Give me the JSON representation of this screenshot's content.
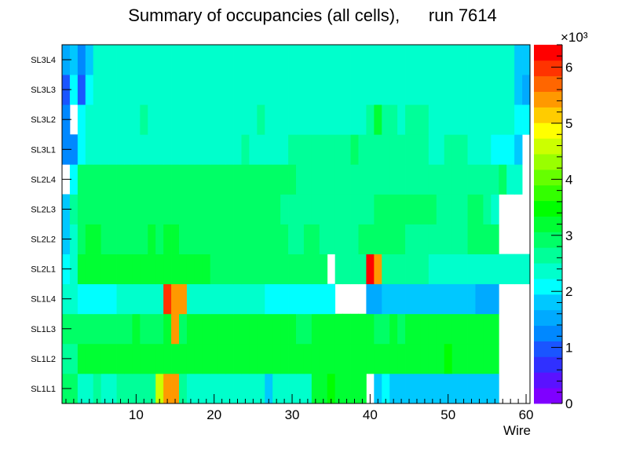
{
  "chart_data": {
    "type": "heatmap",
    "title": "Summary of occupancies (all cells),      run 7614",
    "xlabel": "Wire",
    "ylabel": "",
    "xlim": [
      0.5,
      60.5
    ],
    "x_ticks": [
      10,
      20,
      30,
      40,
      50,
      60
    ],
    "y_labels": [
      "SL1L1",
      "SL1L2",
      "SL1L3",
      "SL1L4",
      "SL2L1",
      "SL2L2",
      "SL2L3",
      "SL2L4",
      "SL3L1",
      "SL3L2",
      "SL3L3",
      "SL3L4"
    ],
    "z_range": [
      0,
      6400
    ],
    "z_multiplier_label": "×10³",
    "colorbar_ticks": [
      0,
      1,
      2,
      3,
      4,
      5,
      6
    ],
    "palette": [
      "#7f00ff",
      "#5a12ff",
      "#3030ff",
      "#1a55ff",
      "#0088ff",
      "#00aaff",
      "#00c8ff",
      "#00ffff",
      "#00ffcc",
      "#00ff99",
      "#00ff66",
      "#00ff33",
      "#00ff00",
      "#33ff00",
      "#66ff00",
      "#99ff00",
      "#ccff00",
      "#ffff00",
      "#ffcc00",
      "#ff9900",
      "#ff6600",
      "#ff3300",
      "#ff0000"
    ],
    "rows": {
      "SL1L1": [
        2900,
        2900,
        2500,
        2500,
        2700,
        2300,
        2500,
        2700,
        2700,
        2700,
        2700,
        2700,
        4700,
        5500,
        5500,
        2700,
        2500,
        2500,
        2500,
        2500,
        2500,
        2500,
        2300,
        2300,
        2300,
        2300,
        1800,
        2300,
        2300,
        2300,
        2300,
        2300,
        3300,
        3300,
        3500,
        3300,
        3300,
        3300,
        3300,
        0,
        1700,
        2100,
        1700,
        1700,
        1700,
        1700,
        1700,
        1700,
        1700,
        1700,
        1700,
        1700,
        1700,
        1700,
        1700,
        1700,
        0,
        0,
        0,
        0
      ],
      "SL1L2": [
        2700,
        2700,
        3100,
        3100,
        3300,
        3100,
        3100,
        3300,
        3300,
        3300,
        3100,
        3100,
        3100,
        3300,
        3300,
        3100,
        3100,
        3100,
        3300,
        3300,
        3300,
        3300,
        3300,
        3300,
        3300,
        3300,
        3300,
        3300,
        3100,
        3100,
        3100,
        3100,
        3100,
        3100,
        3300,
        3300,
        3300,
        3300,
        3300,
        3300,
        3300,
        3100,
        3100,
        3100,
        3100,
        3100,
        3300,
        3300,
        3100,
        3500,
        3100,
        3100,
        3100,
        3100,
        3100,
        3100,
        0,
        0,
        0,
        0
      ],
      "SL1L3": [
        2800,
        2800,
        3000,
        3000,
        3000,
        3000,
        3000,
        3000,
        3000,
        3200,
        3000,
        3000,
        3000,
        3300,
        5300,
        3000,
        3200,
        3300,
        3300,
        3300,
        3300,
        3300,
        3300,
        3300,
        3300,
        3300,
        3300,
        3200,
        3200,
        3200,
        3000,
        3000,
        3300,
        3300,
        3300,
        3300,
        3300,
        3300,
        3300,
        3300,
        3000,
        3000,
        3100,
        3000,
        3100,
        3100,
        3100,
        3100,
        3100,
        3100,
        3100,
        3100,
        3100,
        3100,
        3100,
        3100,
        0,
        0,
        0,
        0
      ],
      "SL1L4": [
        2400,
        2400,
        2100,
        2100,
        2100,
        2100,
        2100,
        2300,
        2300,
        2300,
        2300,
        2500,
        2500,
        6100,
        5500,
        5500,
        2500,
        2300,
        2300,
        2300,
        2300,
        2300,
        2300,
        2300,
        2300,
        2500,
        2100,
        2100,
        2100,
        2100,
        2100,
        2100,
        2100,
        2100,
        2100,
        0,
        0,
        0,
        0,
        1600,
        1600,
        1900,
        1700,
        1700,
        1700,
        1700,
        1700,
        1700,
        1700,
        1700,
        1700,
        1700,
        1700,
        1400,
        1600,
        1400,
        0,
        0,
        0,
        0
      ],
      "SL2L1": [
        2100,
        2500,
        3100,
        3100,
        3300,
        3300,
        3300,
        3100,
        3100,
        3100,
        3300,
        3300,
        3300,
        3300,
        3300,
        3100,
        3300,
        3300,
        3100,
        3000,
        3000,
        3000,
        3000,
        3000,
        3000,
        3000,
        3000,
        3000,
        3000,
        3000,
        3000,
        3000,
        3000,
        3000,
        0,
        2700,
        2700,
        2700,
        2700,
        6200,
        5300,
        2700,
        2700,
        2700,
        2700,
        2700,
        2700,
        2500,
        2500,
        2500,
        2500,
        2500,
        2500,
        2500,
        2500,
        2500,
        2500,
        2500,
        2500,
        2500
      ],
      "SL2L2": [
        1900,
        2500,
        3000,
        3300,
        3300,
        3000,
        3000,
        3000,
        3000,
        3000,
        3000,
        3300,
        3000,
        3300,
        3300,
        3000,
        3000,
        3000,
        3000,
        3000,
        3000,
        3000,
        3000,
        3000,
        3000,
        3000,
        3000,
        3000,
        3000,
        2700,
        2700,
        3000,
        3000,
        2700,
        2700,
        2700,
        2700,
        2700,
        2900,
        2900,
        2900,
        2900,
        2900,
        2900,
        2700,
        2700,
        2700,
        2700,
        2700,
        2700,
        2700,
        2700,
        2900,
        2900,
        2900,
        2900,
        0,
        0,
        0,
        0
      ],
      "SL2L3": [
        1800,
        2700,
        2800,
        2800,
        2800,
        2800,
        2800,
        2800,
        2800,
        2800,
        2800,
        2800,
        2800,
        2800,
        2800,
        2800,
        2800,
        2800,
        2800,
        2800,
        2800,
        2800,
        2800,
        2800,
        2800,
        2800,
        2800,
        2800,
        2700,
        2700,
        2700,
        2700,
        2700,
        2700,
        2700,
        2700,
        2700,
        2700,
        2700,
        2700,
        2800,
        2800,
        2800,
        2800,
        2800,
        2800,
        2800,
        2800,
        2700,
        2700,
        2700,
        2700,
        2900,
        2900,
        2700,
        2500,
        0,
        0,
        0,
        0
      ],
      "SL2L4": [
        0,
        2100,
        2900,
        2900,
        3000,
        3000,
        3000,
        3000,
        2900,
        2900,
        3000,
        3000,
        3000,
        3000,
        3000,
        3000,
        3000,
        3000,
        3000,
        3000,
        3000,
        2900,
        2900,
        2900,
        2900,
        2900,
        2900,
        2900,
        2900,
        2900,
        2600,
        2600,
        2600,
        2600,
        2600,
        2600,
        2600,
        2600,
        2600,
        2600,
        2600,
        2600,
        2600,
        2600,
        2600,
        2600,
        2600,
        2600,
        2600,
        2600,
        2600,
        2600,
        2600,
        2600,
        2600,
        2600,
        2800,
        2500,
        2500,
        0
      ],
      "SL3L1": [
        1200,
        1200,
        2100,
        2500,
        2500,
        2500,
        2500,
        2500,
        2500,
        2500,
        2500,
        2500,
        2500,
        2500,
        2500,
        2500,
        2500,
        2500,
        2500,
        2500,
        2500,
        2500,
        2500,
        2700,
        2500,
        2500,
        2500,
        2500,
        2500,
        2700,
        2700,
        2700,
        2700,
        2700,
        2700,
        2700,
        2700,
        2900,
        2700,
        2700,
        2700,
        2700,
        2700,
        2700,
        2700,
        2700,
        2700,
        2500,
        2500,
        2700,
        2700,
        2700,
        2500,
        2500,
        2400,
        2200,
        2200,
        2100,
        1900,
        0
      ],
      "SL3L2": [
        1200,
        0,
        2100,
        2500,
        2500,
        2500,
        2500,
        2500,
        2500,
        2500,
        2700,
        2500,
        2500,
        2500,
        2500,
        2500,
        2500,
        2500,
        2500,
        2500,
        2500,
        2500,
        2500,
        2500,
        2500,
        2700,
        2500,
        2500,
        2500,
        2500,
        2500,
        2500,
        2500,
        2500,
        2500,
        2500,
        2500,
        2500,
        2500,
        2700,
        3300,
        2700,
        2700,
        2500,
        2700,
        2700,
        2700,
        2500,
        2500,
        2500,
        2500,
        2500,
        2500,
        2500,
        2500,
        2500,
        2500,
        2500,
        2100,
        2000
      ],
      "SL3L3": [
        1100,
        2100,
        1100,
        2100,
        2300,
        2400,
        2400,
        2400,
        2300,
        2400,
        2400,
        2400,
        2300,
        2400,
        2400,
        2400,
        2400,
        2400,
        2400,
        2400,
        2400,
        2300,
        2300,
        2300,
        2300,
        2300,
        2300,
        2300,
        2300,
        2300,
        2300,
        2300,
        2300,
        2300,
        2300,
        2300,
        2300,
        2300,
        2300,
        2300,
        2300,
        2300,
        2300,
        2300,
        2300,
        2300,
        2300,
        2300,
        2300,
        2300,
        2300,
        2300,
        2300,
        2300,
        2300,
        2300,
        2300,
        2300,
        1700,
        1600
      ],
      "SL3L4": [
        1400,
        1900,
        1300,
        1900,
        2400,
        2400,
        2400,
        2400,
        2300,
        2300,
        2300,
        2300,
        2300,
        2300,
        2300,
        2300,
        2300,
        2300,
        2300,
        2300,
        2300,
        2300,
        2300,
        2300,
        2300,
        2300,
        2300,
        2300,
        2300,
        2300,
        2300,
        2300,
        2300,
        2300,
        2300,
        2300,
        2500,
        2300,
        2300,
        2300,
        2300,
        2300,
        2300,
        2300,
        2300,
        2300,
        2300,
        2500,
        2500,
        2300,
        2300,
        2300,
        2300,
        2300,
        2300,
        2300,
        2300,
        2300,
        1700,
        1700
      ]
    }
  }
}
